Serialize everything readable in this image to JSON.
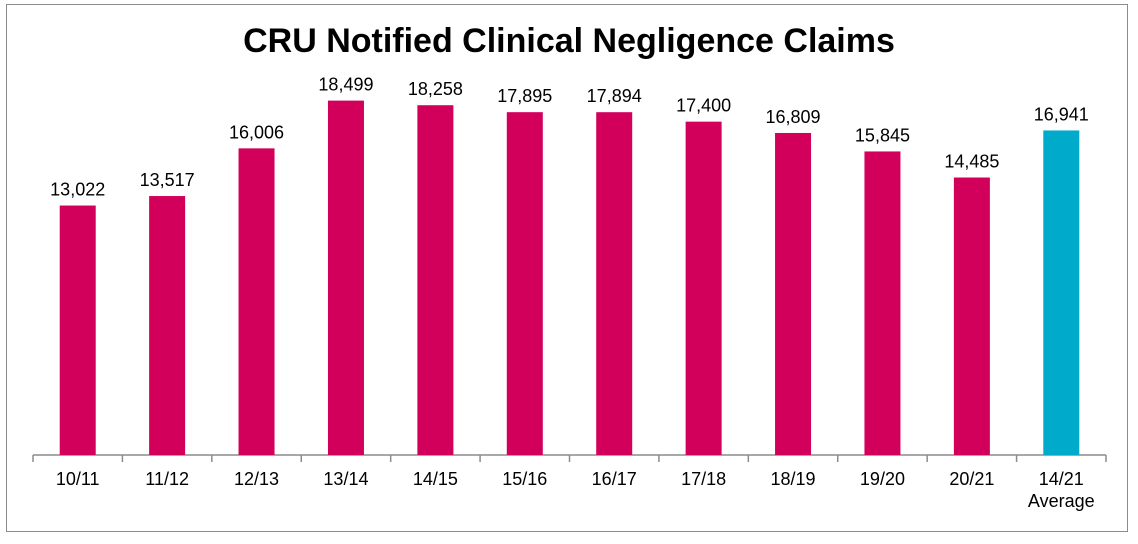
{
  "chart_data": {
    "type": "bar",
    "title": "CRU Notified Clinical Negligence Claims",
    "xlabel": "",
    "ylabel": "",
    "categories": [
      "10/11",
      "11/12",
      "12/13",
      "13/14",
      "14/15",
      "15/16",
      "16/17",
      "17/18",
      "18/19",
      "19/20",
      "20/21",
      "14/21 Average"
    ],
    "tick_lines": [
      [
        "10/11"
      ],
      [
        "11/12"
      ],
      [
        "12/13"
      ],
      [
        "13/14"
      ],
      [
        "14/15"
      ],
      [
        "15/16"
      ],
      [
        "16/17"
      ],
      [
        "17/18"
      ],
      [
        "18/19"
      ],
      [
        "19/20"
      ],
      [
        "20/21"
      ],
      [
        "14/21",
        "Average"
      ]
    ],
    "values": [
      13022,
      13517,
      16006,
      18499,
      18258,
      17895,
      17894,
      17400,
      16809,
      15845,
      14485,
      16941
    ],
    "value_labels": [
      "13,022",
      "13,517",
      "16,006",
      "18,499",
      "18,258",
      "17,895",
      "17,894",
      "17,400",
      "16,809",
      "15,845",
      "14,485",
      "16,941"
    ],
    "ylim": [
      0,
      19000
    ],
    "grid": false,
    "legend": "none",
    "colors": {
      "bar": "#d3005b",
      "average_bar": "#00aacb",
      "axis": "#8c8c8c"
    }
  }
}
